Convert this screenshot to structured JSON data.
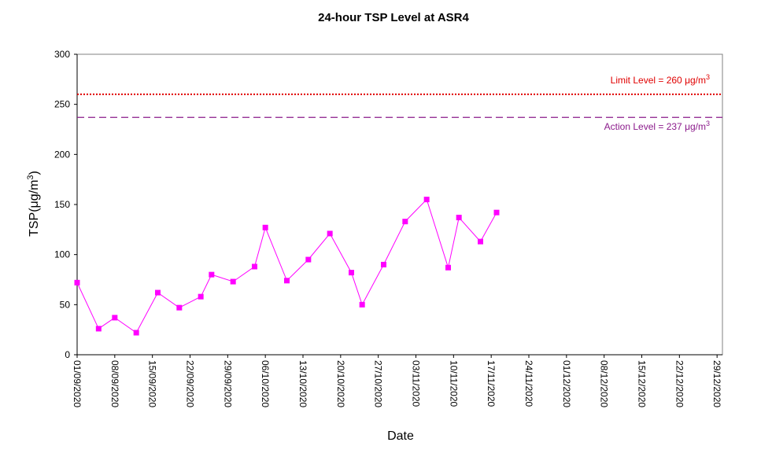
{
  "chart_data": {
    "type": "line",
    "title": "24-hour TSP Level at ASR4",
    "xlabel": "Date",
    "ylabel": {
      "base": "TSP(",
      "mu": "μ",
      "unit": "g/m",
      "sup": "3",
      "close": ")"
    },
    "ylim": [
      0,
      300
    ],
    "yticks": [
      0,
      50,
      100,
      150,
      200,
      250,
      300
    ],
    "xlim": [
      "2020-09-01",
      "2020-12-30"
    ],
    "xticks": [
      "01/09/2020",
      "08/09/2020",
      "15/09/2020",
      "22/09/2020",
      "29/09/2020",
      "06/10/2020",
      "13/10/2020",
      "20/10/2020",
      "27/10/2020",
      "03/11/2020",
      "10/11/2020",
      "17/11/2020",
      "24/11/2020",
      "01/12/2020",
      "08/12/2020",
      "15/12/2020",
      "22/12/2020",
      "29/12/2020"
    ],
    "grid": false,
    "series": [
      {
        "color": "#ff00ff",
        "marker": "square",
        "points": [
          {
            "x": "2020-09-01",
            "y": 72
          },
          {
            "x": "2020-09-05",
            "y": 26
          },
          {
            "x": "2020-09-08",
            "y": 37
          },
          {
            "x": "2020-09-12",
            "y": 22
          },
          {
            "x": "2020-09-16",
            "y": 62
          },
          {
            "x": "2020-09-20",
            "y": 47
          },
          {
            "x": "2020-09-24",
            "y": 58
          },
          {
            "x": "2020-09-26",
            "y": 80
          },
          {
            "x": "2020-09-30",
            "y": 73
          },
          {
            "x": "2020-10-04",
            "y": 88
          },
          {
            "x": "2020-10-06",
            "y": 127
          },
          {
            "x": "2020-10-10",
            "y": 74
          },
          {
            "x": "2020-10-14",
            "y": 95
          },
          {
            "x": "2020-10-18",
            "y": 121
          },
          {
            "x": "2020-10-22",
            "y": 82
          },
          {
            "x": "2020-10-24",
            "y": 50
          },
          {
            "x": "2020-10-28",
            "y": 90
          },
          {
            "x": "2020-11-01",
            "y": 133
          },
          {
            "x": "2020-11-05",
            "y": 155
          },
          {
            "x": "2020-11-09",
            "y": 87
          },
          {
            "x": "2020-11-11",
            "y": 137
          },
          {
            "x": "2020-11-15",
            "y": 113
          },
          {
            "x": "2020-11-18",
            "y": 142
          }
        ]
      }
    ],
    "reference_lines": [
      {
        "name": "limit",
        "y": 260,
        "color": "#e00000",
        "style": "dotted",
        "label": {
          "text": "Limit Level  = 260 ",
          "mu": "μ",
          "unit": "g/m",
          "sup": "3"
        }
      },
      {
        "name": "action",
        "y": 237,
        "color": "#8b1a8b",
        "style": "dashed",
        "label": {
          "text": "Action Level  = 237 ",
          "mu": "μ",
          "unit": "g/m",
          "sup": "3"
        }
      }
    ],
    "colors": {
      "axis": "#000000",
      "plot_border": "#808080"
    }
  }
}
